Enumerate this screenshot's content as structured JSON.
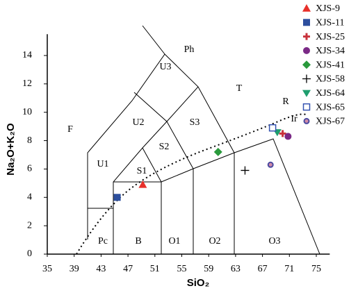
{
  "chart_data": {
    "type": "scatter",
    "x_label": "SiO₂",
    "y_label": "Na₂O+K₂O",
    "xlim": [
      35,
      77
    ],
    "ylim": [
      0,
      15.5
    ],
    "xticks": [
      35,
      39,
      43,
      47,
      51,
      55,
      59,
      63,
      67,
      71,
      75
    ],
    "yticks": [
      0,
      2,
      4,
      6,
      8,
      10,
      12,
      14
    ],
    "annotations": [
      "F",
      "U1",
      "U2",
      "U3",
      "Ph",
      "T",
      "S1",
      "S2",
      "S3",
      "Pc",
      "B",
      "O1",
      "O2",
      "O3",
      "R",
      "Ir"
    ],
    "series": [
      {
        "name": "XJS-9",
        "marker": "triangle",
        "color": "#e8302a",
        "x": [
          49.2
        ],
        "y": [
          4.9
        ]
      },
      {
        "name": "XJS-11",
        "marker": "square",
        "color": "#2d4f9e",
        "x": [
          45.4
        ],
        "y": [
          4.0
        ]
      },
      {
        "name": "XJS-25",
        "marker": "plus",
        "color": "#c8323c",
        "x": [
          70.0
        ],
        "y": [
          8.5
        ]
      },
      {
        "name": "XJS-34",
        "marker": "circle",
        "color": "#7b2a86",
        "x": [
          70.8
        ],
        "y": [
          8.3
        ]
      },
      {
        "name": "XJS-41",
        "marker": "diamond",
        "color": "#2a9a3c",
        "x": [
          60.4
        ],
        "y": [
          7.2
        ]
      },
      {
        "name": "XJS-58",
        "marker": "cross-thin",
        "color": "#000000",
        "x": [
          64.4
        ],
        "y": [
          5.9
        ]
      },
      {
        "name": "XJS-64",
        "marker": "triangle-down",
        "color": "#1f9e6e",
        "x": [
          69.2
        ],
        "y": [
          8.6
        ]
      },
      {
        "name": "XJS-65",
        "marker": "square-open",
        "color": "#3452b0",
        "x": [
          68.5
        ],
        "y": [
          8.9
        ]
      },
      {
        "name": "XJS-67",
        "marker": "circle-ring",
        "color": "#4a4aa0",
        "x": [
          68.2
        ],
        "y": [
          6.3
        ]
      }
    ]
  }
}
